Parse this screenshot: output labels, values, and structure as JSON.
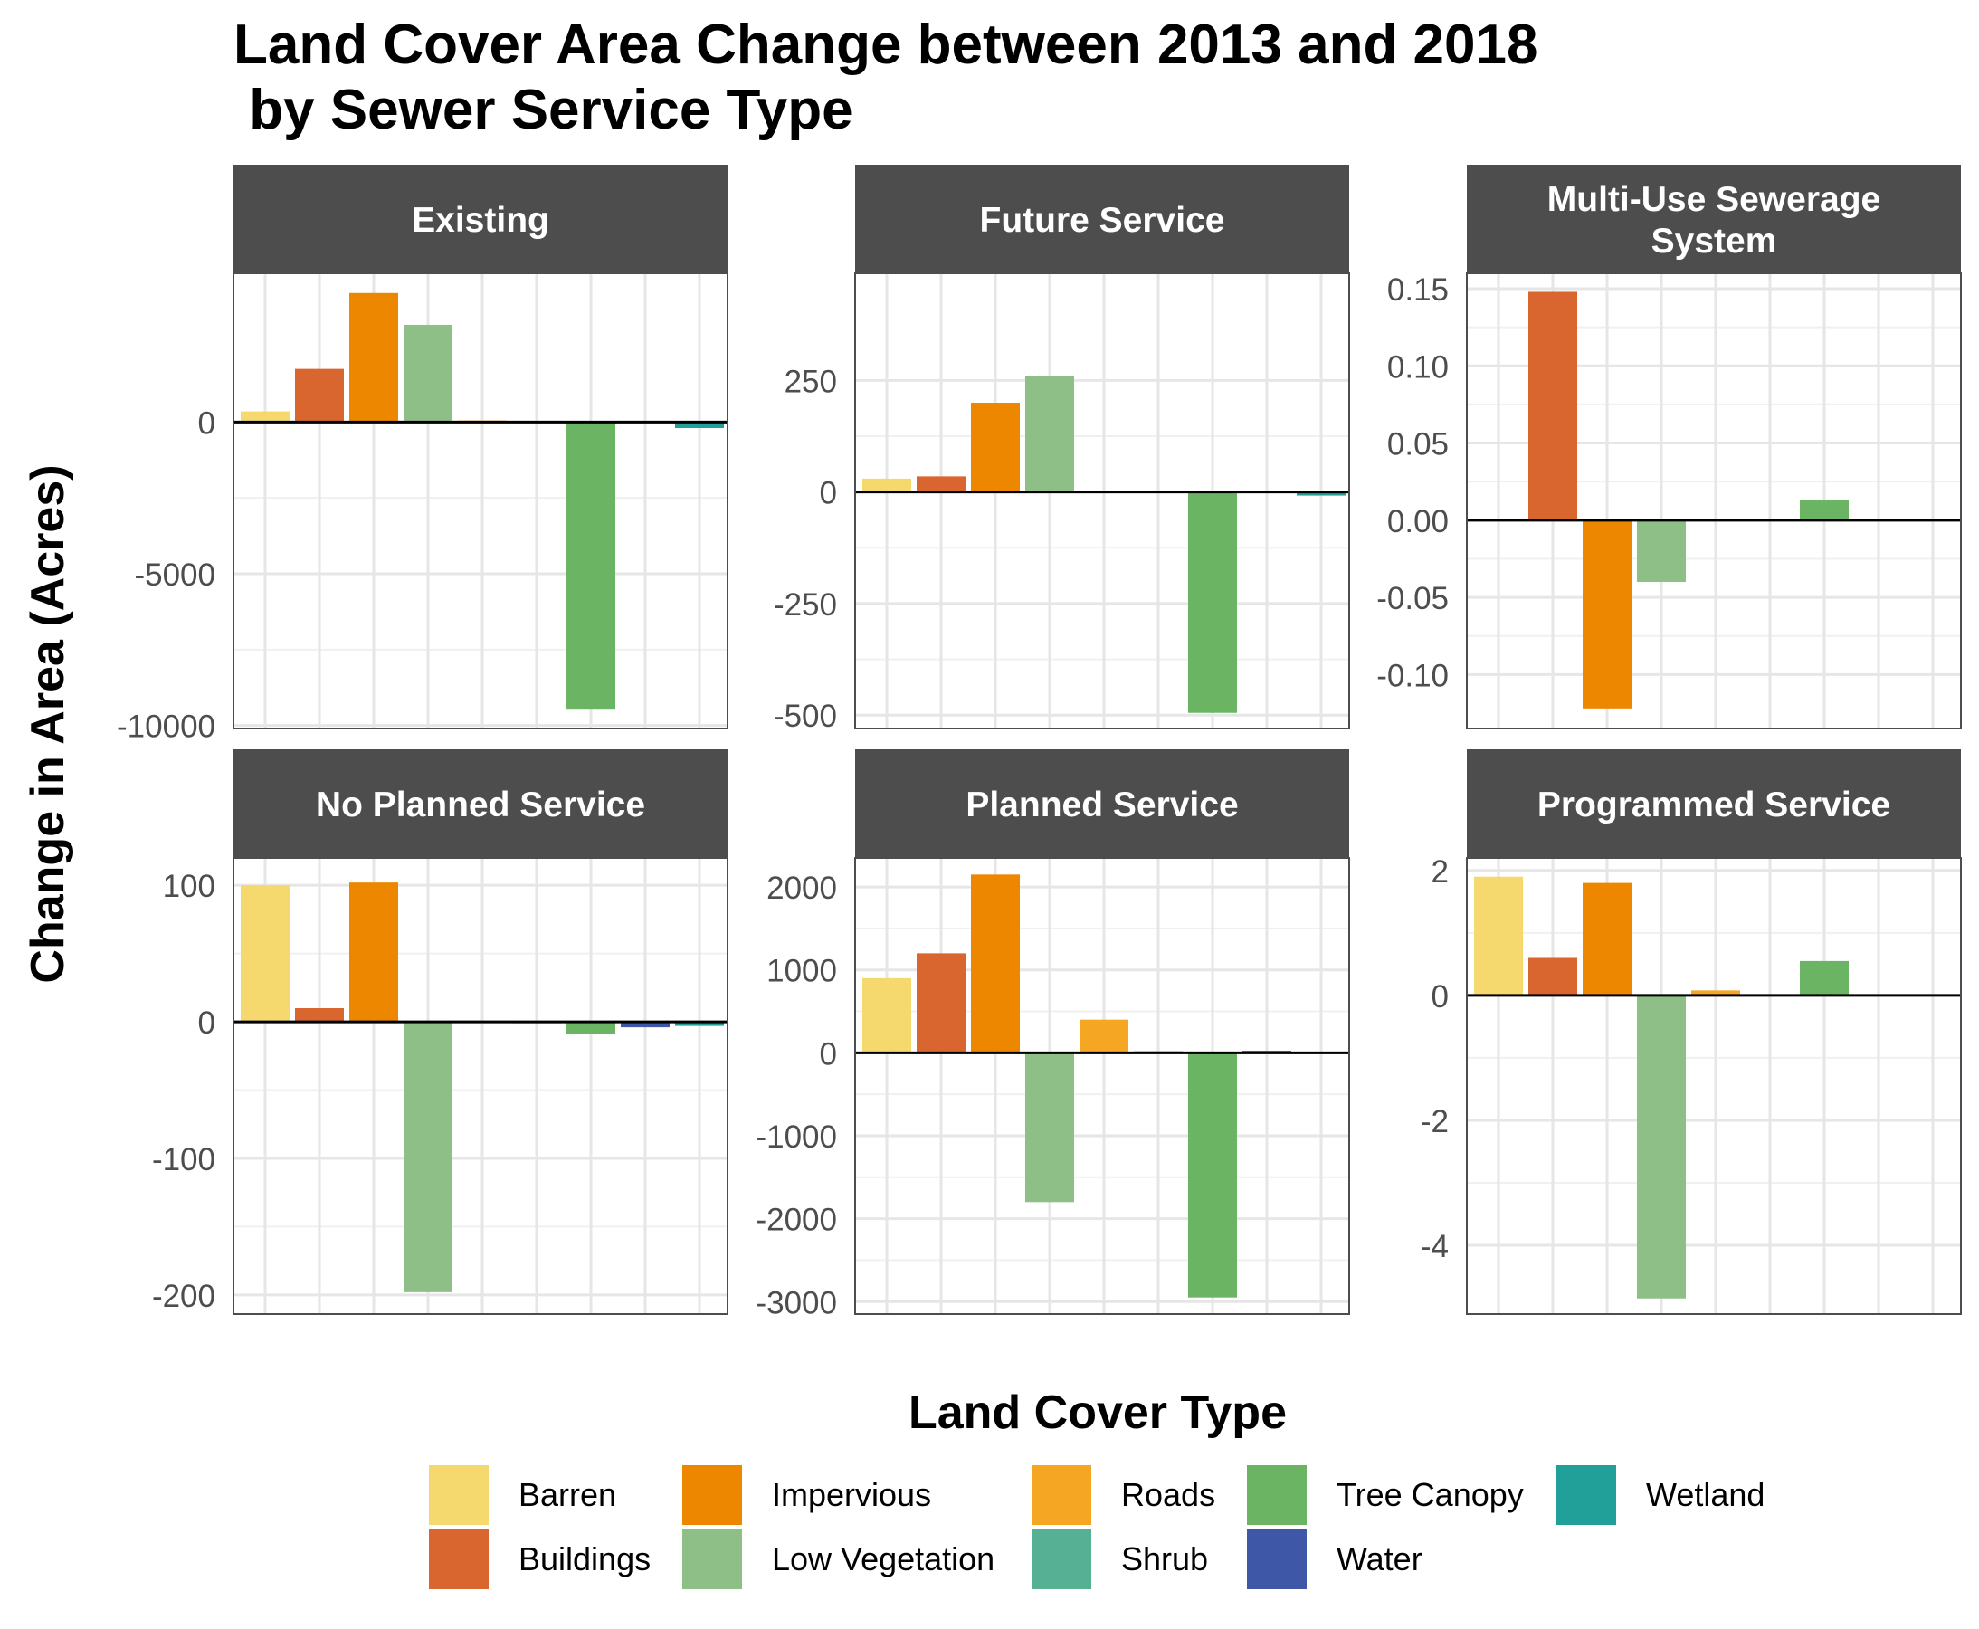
{
  "chart_data": {
    "type": "bar",
    "title_lines": [
      "Land Cover Area Change between 2013 and 2018",
      " by Sewer Service Type"
    ],
    "xlabel": "",
    "ylabel": "Change in Area (Acres)",
    "legend_title": "Land Cover Type",
    "legend_position": "bottom",
    "grid": true,
    "categories": [
      "Barren",
      "Buildings",
      "Impervious",
      "Low Vegetation",
      "Roads",
      "Shrub",
      "Tree Canopy",
      "Water",
      "Wetland"
    ],
    "colors": {
      "Barren": "#F6D96E",
      "Buildings": "#D9652F",
      "Impervious": "#EE8700",
      "Low Vegetation": "#8DBF87",
      "Roads": "#F5A623",
      "Shrub": "#56B093",
      "Tree Canopy": "#6BB464",
      "Water": "#3E57A7",
      "Wetland": "#21A09A"
    },
    "legend_layout": [
      [
        "Barren",
        "Buildings"
      ],
      [
        "Impervious",
        "Low Vegetation"
      ],
      [
        "Roads",
        "Shrub"
      ],
      [
        "Tree Canopy",
        "Water"
      ],
      [
        "Wetland"
      ]
    ],
    "facets": [
      {
        "title": "Existing",
        "ylim": [
          -10100,
          4900
        ],
        "yticks": [
          0,
          -5000,
          -10000
        ],
        "values": [
          350,
          1750,
          4250,
          3200,
          50,
          0,
          -9450,
          0,
          -200
        ]
      },
      {
        "title": "Future Service",
        "ylim": [
          -530,
          490
        ],
        "yticks": [
          250,
          0,
          -250,
          -500
        ],
        "values": [
          30,
          35,
          200,
          260,
          0,
          0,
          -495,
          0,
          -8
        ]
      },
      {
        "title": "Multi-Use Sewerage\nSystem",
        "ylim": [
          -0.135,
          0.16
        ],
        "yticks": [
          0.15,
          0.1,
          0.05,
          0.0,
          -0.05,
          -0.1
        ],
        "ytick_labels": [
          "0.15",
          "0.10",
          "0.05",
          "0.00",
          "-0.05",
          "-0.10"
        ],
        "values": [
          0,
          0.148,
          -0.122,
          -0.04,
          0,
          0,
          0.013,
          0,
          0
        ]
      },
      {
        "title": "No Planned Service",
        "ylim": [
          -214,
          120
        ],
        "yticks": [
          100,
          0,
          -100,
          -200
        ],
        "values": [
          100,
          10,
          102,
          -198,
          0,
          -1,
          -9,
          -4,
          -3
        ]
      },
      {
        "title": "Planned Service",
        "ylim": [
          -3150,
          2350
        ],
        "yticks": [
          2000,
          1000,
          0,
          -1000,
          -2000,
          -3000
        ],
        "values": [
          900,
          1200,
          2150,
          -1800,
          400,
          20,
          -2950,
          25,
          0
        ]
      },
      {
        "title": "Programmed Service",
        "ylim": [
          -5.1,
          2.2
        ],
        "yticks": [
          2,
          0,
          -2,
          -4
        ],
        "values": [
          1.9,
          0.6,
          1.8,
          -4.85,
          0.08,
          0,
          0.55,
          0,
          0
        ]
      }
    ]
  }
}
